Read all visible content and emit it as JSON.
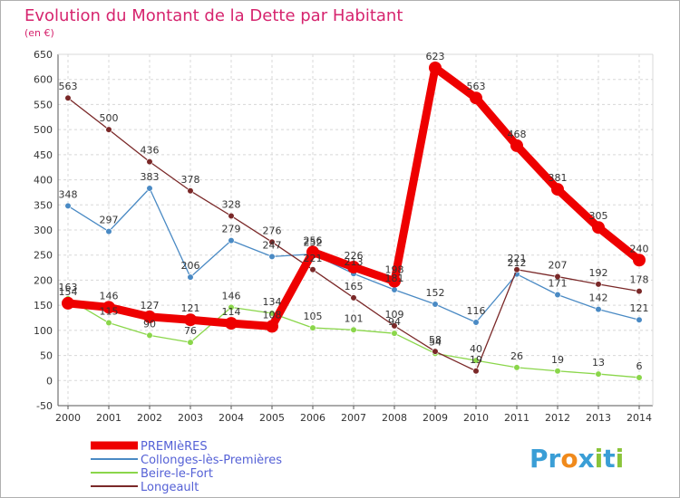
{
  "chart_data": {
    "type": "line",
    "title": "Evolution du Montant de la Dette par Habitant",
    "unit_label": "(en €)",
    "x": [
      "2000",
      "2001",
      "2002",
      "2003",
      "2004",
      "2005",
      "2006",
      "2007",
      "2008",
      "2009",
      "2010",
      "2011",
      "2012",
      "2013",
      "2014"
    ],
    "ylim": [
      -50,
      650
    ],
    "yticks": [
      -50,
      0,
      50,
      100,
      150,
      200,
      250,
      300,
      350,
      400,
      450,
      500,
      550,
      600,
      650
    ],
    "grid": true,
    "legend_position": "bottom-left",
    "series": [
      {
        "name": "Collonges-lès-Premières",
        "color": "#4a8ac4",
        "values": [
          348,
          297,
          383,
          206,
          279,
          247,
          252,
          213,
          181,
          152,
          116,
          212,
          171,
          142,
          121
        ]
      },
      {
        "name": "Beire-le-Fort",
        "color": "#8ad64a",
        "values": [
          163,
          115,
          90,
          76,
          146,
          134,
          105,
          101,
          94,
          54,
          40,
          26,
          19,
          13,
          6
        ]
      },
      {
        "name": "Longeault",
        "color": "#7a2828",
        "values": [
          563,
          500,
          436,
          378,
          328,
          276,
          221,
          165,
          109,
          58,
          19,
          221,
          207,
          192,
          178
        ]
      },
      {
        "name": "PREMIèRES",
        "color": "#ee0000",
        "values": [
          154,
          146,
          127,
          121,
          114,
          108,
          256,
          226,
          198,
          623,
          563,
          468,
          381,
          305,
          240
        ]
      }
    ]
  },
  "logo": {
    "text": "Proxiti",
    "letters": [
      "P",
      "r",
      "o",
      "x",
      "i",
      "t",
      "i"
    ],
    "colors": [
      "#3a9ed6",
      "#3a9ed6",
      "#f08a1c",
      "#3a9ed6",
      "#8ac43a",
      "#3a9ed6",
      "#8ac43a"
    ]
  }
}
